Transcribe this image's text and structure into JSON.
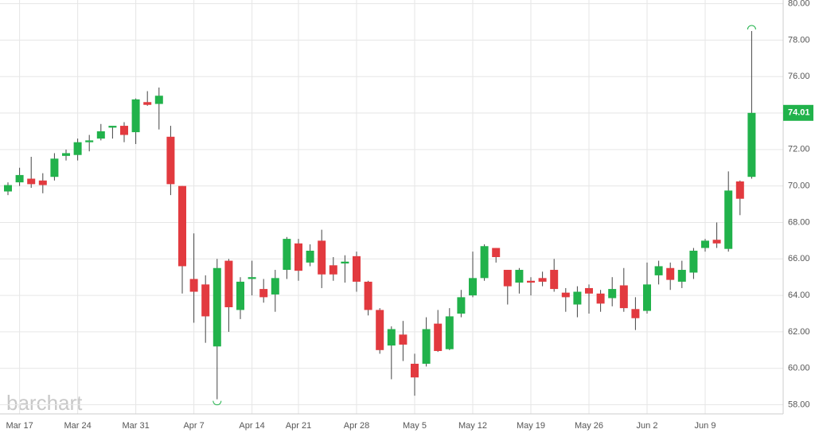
{
  "chart_data": {
    "type": "candlestick",
    "watermark": "barchart",
    "up_color": "#21b24b",
    "down_color": "#e23a3f",
    "grid": true,
    "ylim": [
      57.5,
      80.2
    ],
    "yticks": [
      {
        "value": 58,
        "label": "58.00"
      },
      {
        "value": 60,
        "label": "60.00"
      },
      {
        "value": 62,
        "label": "62.00"
      },
      {
        "value": 64,
        "label": "64.00"
      },
      {
        "value": 66,
        "label": "66.00"
      },
      {
        "value": 68,
        "label": "68.00"
      },
      {
        "value": 70,
        "label": "70.00"
      },
      {
        "value": 72,
        "label": "72.00"
      },
      {
        "value": 74,
        "label": "74.00"
      },
      {
        "value": 76,
        "label": "76.00"
      },
      {
        "value": 78,
        "label": "78.00"
      },
      {
        "value": 80,
        "label": "80.00"
      }
    ],
    "last_price": 74.01,
    "categories": [
      null,
      "Mar 17",
      null,
      null,
      null,
      null,
      "Mar 24",
      null,
      null,
      null,
      null,
      "Mar 31",
      null,
      null,
      null,
      null,
      "Apr 7",
      null,
      null,
      null,
      null,
      "Apr 14",
      null,
      null,
      null,
      "Apr 21",
      null,
      null,
      null,
      null,
      "Apr 28",
      null,
      null,
      null,
      null,
      "May 5",
      null,
      null,
      null,
      null,
      "May 12",
      null,
      null,
      null,
      null,
      "May 19",
      null,
      null,
      null,
      null,
      "May 26",
      null,
      null,
      null,
      null,
      "Jun 2",
      null,
      null,
      null,
      null,
      "Jun 9",
      null,
      null,
      null,
      null
    ],
    "open": [
      69.7,
      70.2,
      70.4,
      70.3,
      70.5,
      71.65,
      71.7,
      72.4,
      72.6,
      73.2,
      73.3,
      72.95,
      74.6,
      74.5,
      72.7,
      70.0,
      64.9,
      64.6,
      61.2,
      65.9,
      63.2,
      64.9,
      64.35,
      64.05,
      65.4,
      66.85,
      65.8,
      67.0,
      65.65,
      65.75,
      66.15,
      64.75,
      63.2,
      61.25,
      61.85,
      60.25,
      60.25,
      62.45,
      61.05,
      63.0,
      64.0,
      64.95,
      66.6,
      65.4,
      64.7,
      64.8,
      64.95,
      65.4,
      64.15,
      63.5,
      64.4,
      64.1,
      63.85,
      64.55,
      63.25,
      63.15,
      65.1,
      65.5,
      64.75,
      65.25,
      66.6,
      67.05,
      66.55,
      70.25,
      70.5
    ],
    "high": [
      70.2,
      71.0,
      71.6,
      70.7,
      71.8,
      72.0,
      72.6,
      72.8,
      73.4,
      73.3,
      73.5,
      74.8,
      75.2,
      75.4,
      73.3,
      70.0,
      67.4,
      65.1,
      66.0,
      66.0,
      65.0,
      65.9,
      64.9,
      65.4,
      67.2,
      67.1,
      66.8,
      67.6,
      66.1,
      66.2,
      66.4,
      64.8,
      63.3,
      62.3,
      62.6,
      60.8,
      62.8,
      63.2,
      63.3,
      64.3,
      66.4,
      66.8,
      66.6,
      65.4,
      65.5,
      65.0,
      65.3,
      66.0,
      64.4,
      64.5,
      64.6,
      64.3,
      65.0,
      65.5,
      63.9,
      65.8,
      65.9,
      65.8,
      65.9,
      66.6,
      67.1,
      68.0,
      70.8,
      70.3,
      78.5
    ],
    "low": [
      69.5,
      70.0,
      69.9,
      69.6,
      70.3,
      71.4,
      71.4,
      71.9,
      72.5,
      72.6,
      72.4,
      72.3,
      74.4,
      73.1,
      69.5,
      64.1,
      62.5,
      61.4,
      58.3,
      62.0,
      62.7,
      64.0,
      63.6,
      63.1,
      64.9,
      64.8,
      65.6,
      64.4,
      64.8,
      64.7,
      64.2,
      62.9,
      60.8,
      59.4,
      60.4,
      58.5,
      60.1,
      60.9,
      61.0,
      62.8,
      63.9,
      64.8,
      65.8,
      63.5,
      64.1,
      64.0,
      64.5,
      64.2,
      63.1,
      62.8,
      63.0,
      63.1,
      63.4,
      63.1,
      62.1,
      63.0,
      64.6,
      64.3,
      64.4,
      64.9,
      66.4,
      66.6,
      66.4,
      68.4,
      70.4
    ],
    "close": [
      70.05,
      70.6,
      70.1,
      70.05,
      71.5,
      71.8,
      72.4,
      72.5,
      73.0,
      73.3,
      72.8,
      74.75,
      74.45,
      74.95,
      70.1,
      65.6,
      64.2,
      62.85,
      65.5,
      63.35,
      64.75,
      65.0,
      63.9,
      64.95,
      67.1,
      65.35,
      66.45,
      65.15,
      65.15,
      65.85,
      64.75,
      63.2,
      61.0,
      62.15,
      61.3,
      59.5,
      62.15,
      60.95,
      62.85,
      63.9,
      64.95,
      66.7,
      66.1,
      64.5,
      65.4,
      64.7,
      64.75,
      64.35,
      63.9,
      64.2,
      64.1,
      63.55,
      64.35,
      63.3,
      62.75,
      64.6,
      65.6,
      64.85,
      65.4,
      66.45,
      67.0,
      66.85,
      69.75,
      69.3,
      74.01
    ]
  }
}
